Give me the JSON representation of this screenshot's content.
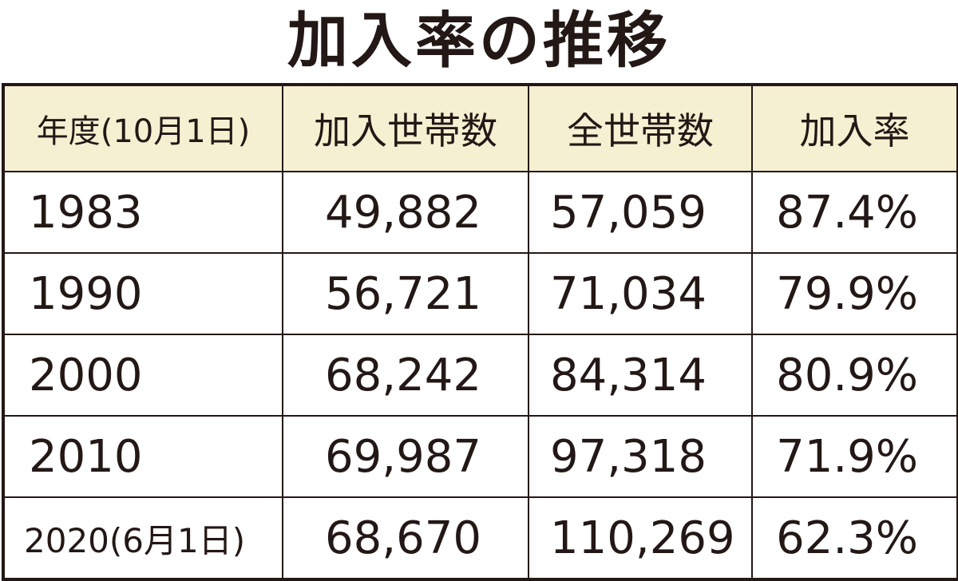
{
  "title": "加入率の推移",
  "table": {
    "header": [
      "年度(10月1日)",
      "加入世帯数",
      "全世帯数",
      "加入率"
    ],
    "rows": [
      [
        "1983",
        "49,882",
        "57,059",
        "87.4%"
      ],
      [
        "1990",
        "56,721",
        "71,034",
        "79.9%"
      ],
      [
        "2000",
        "68,242",
        "84,314",
        "80.9%"
      ],
      [
        "2010",
        "69,987",
        "97,318",
        "71.9%"
      ],
      [
        "2020(6月1日)",
        "68,670",
        "110,269",
        "62.3%"
      ]
    ]
  }
}
